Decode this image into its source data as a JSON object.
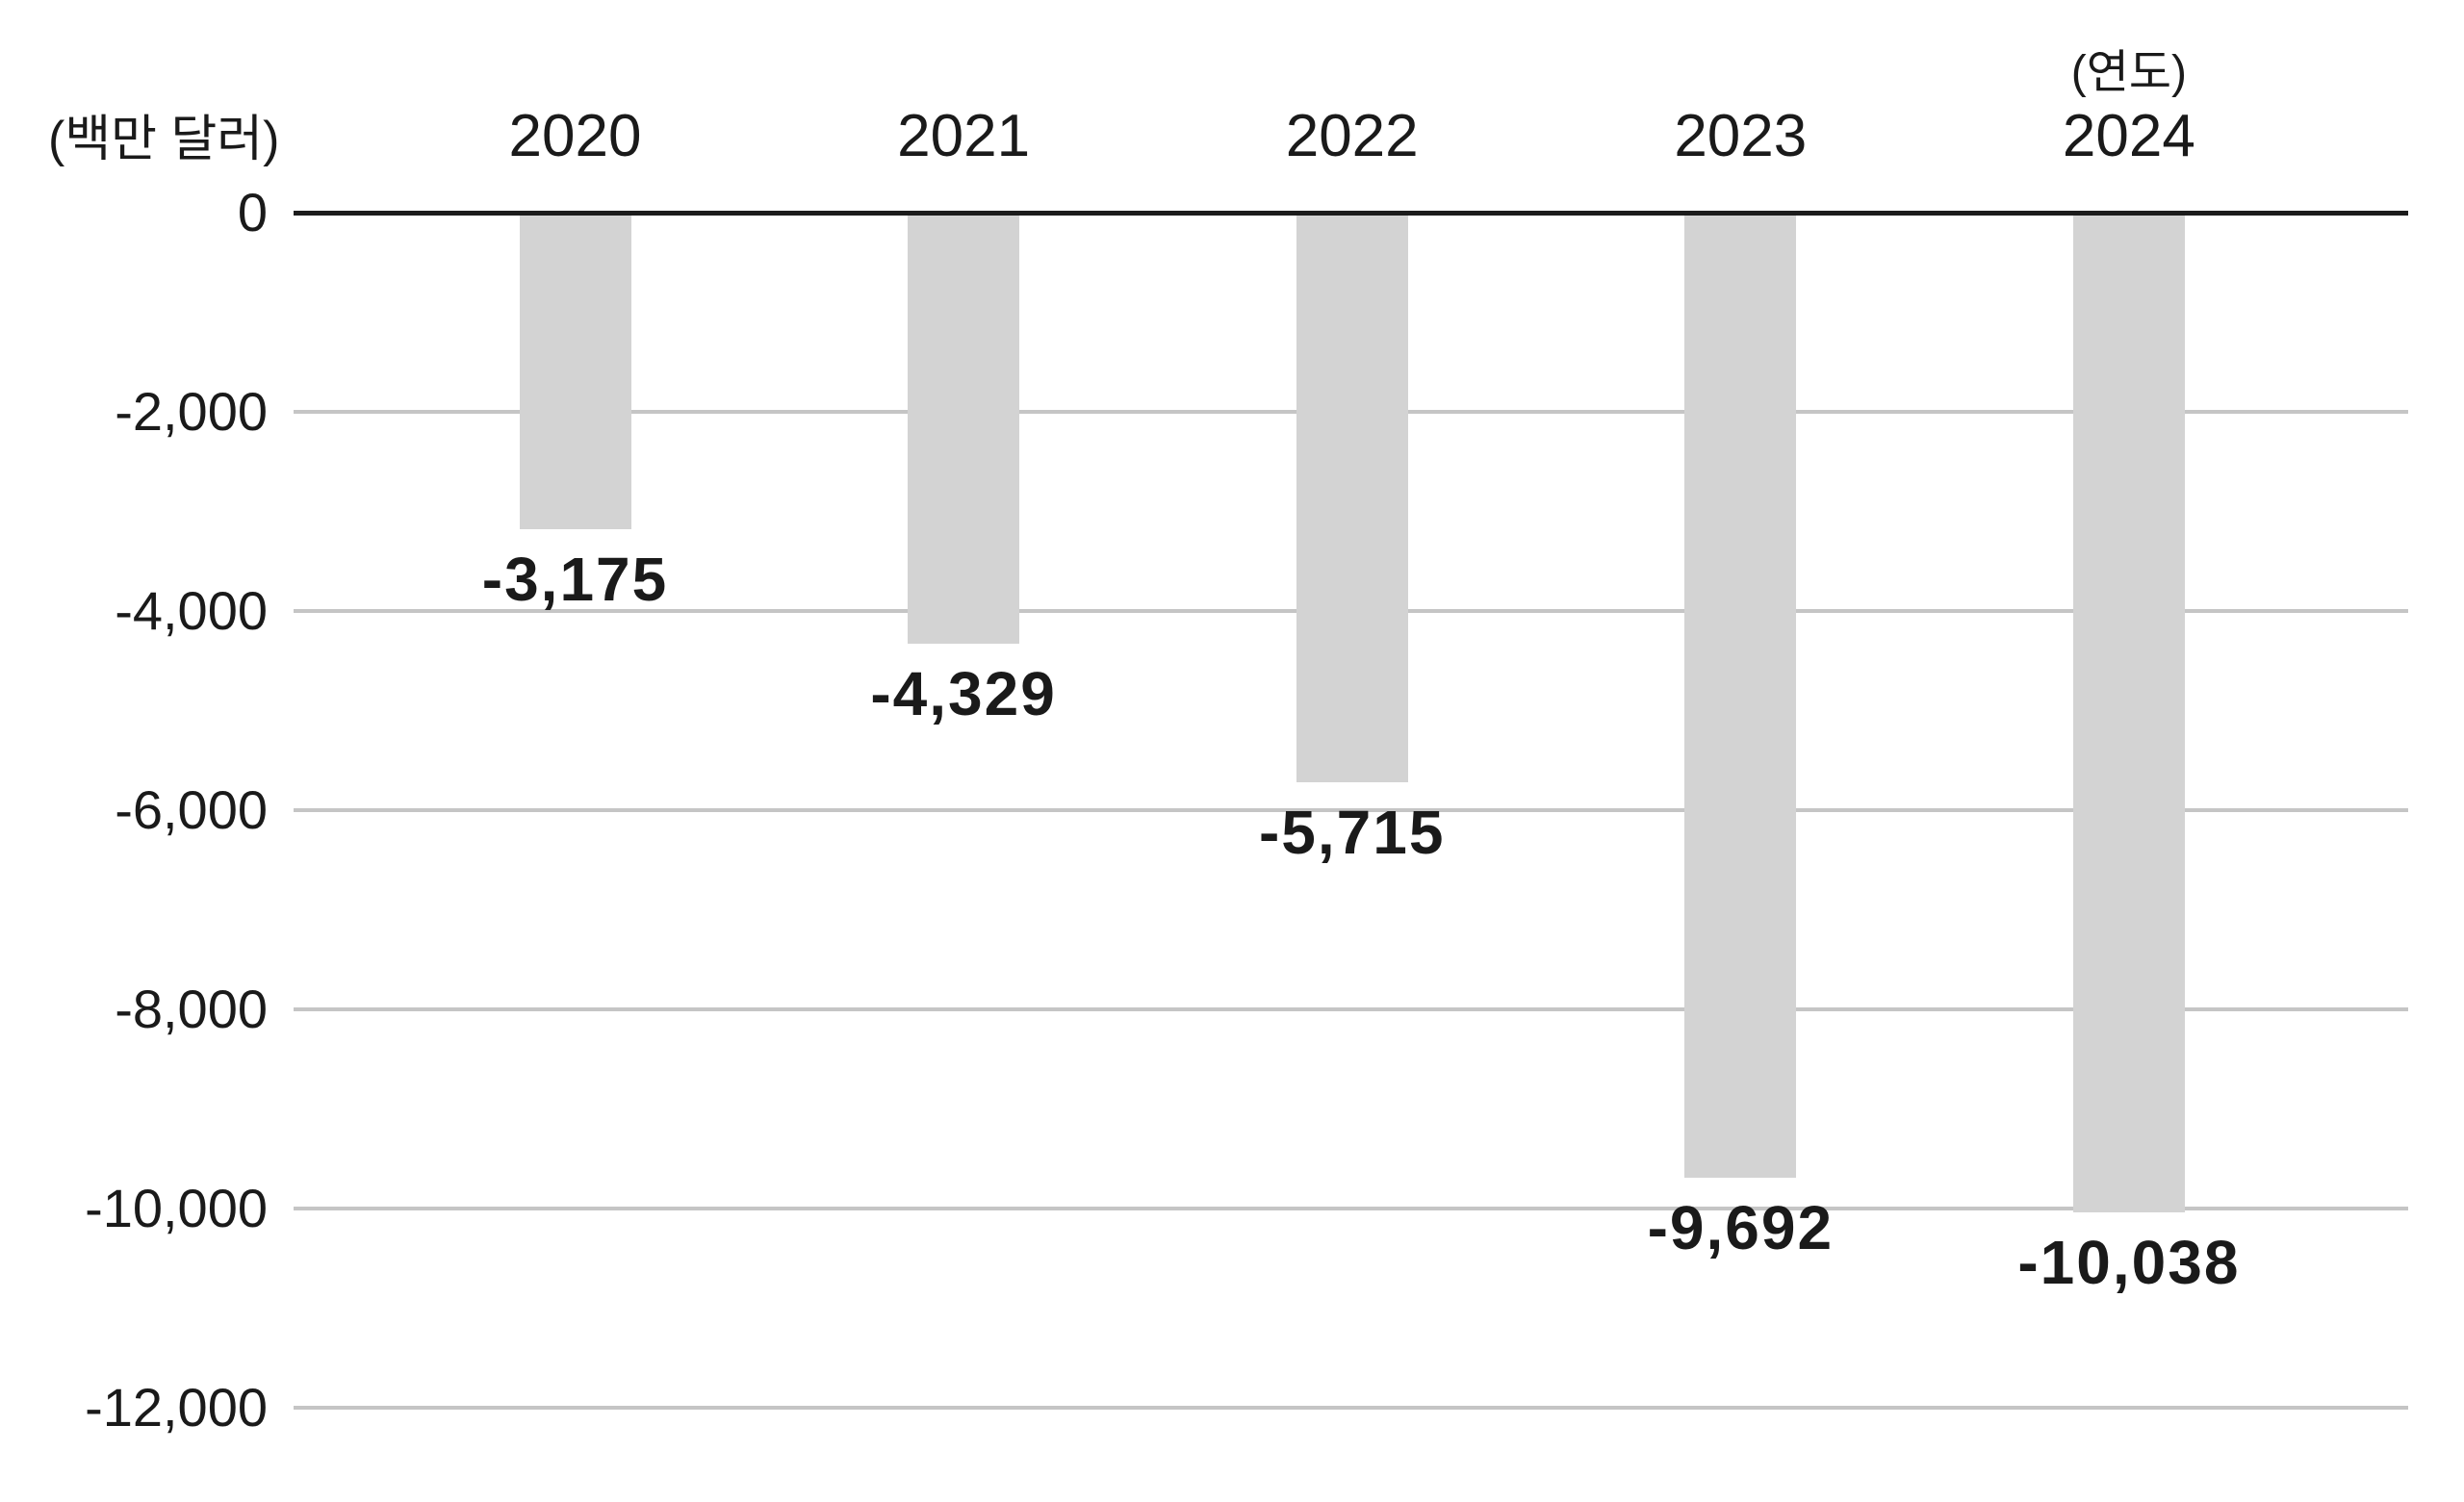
{
  "chart_data": {
    "type": "bar",
    "title": "",
    "y_unit_label": "(백만 달러)",
    "x_unit_label": "(연도)",
    "x_unit_position": "above-last-category",
    "categories": [
      "2020",
      "2021",
      "2022",
      "2023",
      "2024"
    ],
    "values": [
      -3175,
      -4329,
      -5715,
      -9692,
      -10038
    ],
    "value_labels": [
      "-3,175",
      "-4,329",
      "-5,715",
      "-9,692",
      "-10,038"
    ],
    "y_ticks": [
      {
        "value": 0,
        "label": "0"
      },
      {
        "value": -2000,
        "label": "-2,000"
      },
      {
        "value": -4000,
        "label": "-4,000"
      },
      {
        "value": -6000,
        "label": "-6,000"
      },
      {
        "value": -8000,
        "label": "-8,000"
      },
      {
        "value": -10000,
        "label": "-10,000"
      },
      {
        "value": -12000,
        "label": "-12,000"
      }
    ],
    "ylim": [
      -12000,
      0
    ],
    "grid": true,
    "legend": "none",
    "bar_orientation": "vertical-negative",
    "colors": {
      "bar": "#d3d3d3",
      "gridline": "#c5c5c5",
      "zero_line": "#1c1c1c",
      "text": "#1a1a1a"
    }
  }
}
